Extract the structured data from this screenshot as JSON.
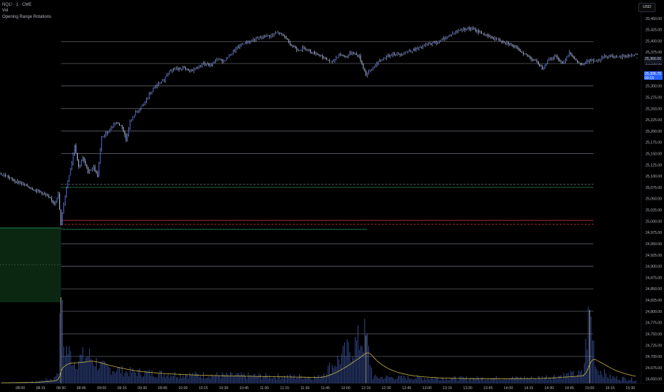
{
  "legend": {
    "symbol": "NQ1! · 1 · CME",
    "volume": "Vol",
    "indicator": "Opening Range Rotations"
  },
  "currency": "USD",
  "price_tags": {
    "last": "25,366.00",
    "current": "25,306.75",
    "current_sub": "00:15"
  },
  "colors": {
    "background": "#000000",
    "candle": "#c9d6ff",
    "candle_body": "#4a6cf7",
    "volume": "#3f5ab0",
    "volume_ma": "#c9b43f",
    "grid_lines": "#6b6f78",
    "green_level": "#27a86b",
    "red_level": "#e03b3b",
    "range_box": "#0d2e14"
  },
  "chart_data": {
    "type": "candlestick",
    "y_axis": {
      "range": [
        24640,
        25475
      ],
      "ticks": [
        24650,
        24675,
        24700,
        24725,
        24750,
        24775,
        24800,
        24825,
        24850,
        24875,
        24900,
        24925,
        24950,
        24975,
        25000,
        25025,
        25050,
        25075,
        25100,
        25125,
        25150,
        25175,
        25200,
        25225,
        25250,
        25275,
        25300,
        25325,
        25350,
        25375,
        25400,
        25425,
        25450
      ],
      "tick_labels": [
        "24,650.00",
        "24,675.00",
        "24,700.00",
        "24,725.00",
        "24,750.00",
        "24,775.00",
        "24,800.00",
        "24,825.00",
        "24,850.00",
        "24,875.00",
        "24,900.00",
        "24,925.00",
        "24,950.00",
        "24,975.00",
        "25,000.00",
        "25,025.00",
        "25,050.00",
        "25,075.00",
        "25,100.00",
        "25,125.00",
        "25,150.00",
        "25,175.00",
        "25,200.00",
        "25,225.00",
        "25,250.00",
        "25,275.00",
        "25,300.00",
        "25,325.00",
        "25,350.00",
        "25,375.00",
        "25,400.00",
        "25,425.00",
        "25,450.00"
      ]
    },
    "x_axis": {
      "tick_labels": [
        "08:00",
        "08:15",
        "08:30",
        "08:45",
        "09:00",
        "09:15",
        "09:30",
        "09:45",
        "10:00",
        "10:15",
        "10:30",
        "10:45",
        "11:00",
        "11:15",
        "11:30",
        "11:45",
        "12:00",
        "12:15",
        "12:30",
        "12:45",
        "13:00",
        "13:15",
        "13:30",
        "13:45",
        "14:00",
        "14:15",
        "14:30",
        "14:45",
        "15:00",
        "15:15",
        "15:30"
      ],
      "tick_minutes": [
        480,
        495,
        510,
        525,
        540,
        555,
        570,
        585,
        600,
        615,
        630,
        645,
        660,
        675,
        690,
        705,
        720,
        735,
        750,
        765,
        780,
        795,
        810,
        825,
        840,
        855,
        870,
        885,
        900,
        915,
        930
      ]
    },
    "price_path": [
      {
        "t": 465,
        "p": 25105
      },
      {
        "t": 470,
        "p": 25100
      },
      {
        "t": 475,
        "p": 25090
      },
      {
        "t": 480,
        "p": 25085
      },
      {
        "t": 485,
        "p": 25078
      },
      {
        "t": 490,
        "p": 25070
      },
      {
        "t": 495,
        "p": 25065
      },
      {
        "t": 500,
        "p": 25055
      },
      {
        "t": 505,
        "p": 25040
      },
      {
        "t": 508,
        "p": 25060
      },
      {
        "t": 510,
        "p": 24990
      },
      {
        "t": 512,
        "p": 25040
      },
      {
        "t": 515,
        "p": 25090
      },
      {
        "t": 518,
        "p": 25130
      },
      {
        "t": 520,
        "p": 25170
      },
      {
        "t": 523,
        "p": 25120
      },
      {
        "t": 526,
        "p": 25140
      },
      {
        "t": 530,
        "p": 25110
      },
      {
        "t": 534,
        "p": 25120
      },
      {
        "t": 537,
        "p": 25100
      },
      {
        "t": 540,
        "p": 25185
      },
      {
        "t": 545,
        "p": 25200
      },
      {
        "t": 550,
        "p": 25220
      },
      {
        "t": 555,
        "p": 25210
      },
      {
        "t": 558,
        "p": 25180
      },
      {
        "t": 561,
        "p": 25220
      },
      {
        "t": 565,
        "p": 25240
      },
      {
        "t": 570,
        "p": 25255
      },
      {
        "t": 575,
        "p": 25280
      },
      {
        "t": 580,
        "p": 25300
      },
      {
        "t": 585,
        "p": 25310
      },
      {
        "t": 590,
        "p": 25335
      },
      {
        "t": 595,
        "p": 25338
      },
      {
        "t": 600,
        "p": 25340
      },
      {
        "t": 605,
        "p": 25332
      },
      {
        "t": 610,
        "p": 25340
      },
      {
        "t": 615,
        "p": 25350
      },
      {
        "t": 620,
        "p": 25345
      },
      {
        "t": 625,
        "p": 25360
      },
      {
        "t": 630,
        "p": 25355
      },
      {
        "t": 635,
        "p": 25370
      },
      {
        "t": 640,
        "p": 25385
      },
      {
        "t": 645,
        "p": 25395
      },
      {
        "t": 650,
        "p": 25400
      },
      {
        "t": 655,
        "p": 25405
      },
      {
        "t": 660,
        "p": 25410
      },
      {
        "t": 665,
        "p": 25412
      },
      {
        "t": 670,
        "p": 25418
      },
      {
        "t": 675,
        "p": 25410
      },
      {
        "t": 680,
        "p": 25390
      },
      {
        "t": 685,
        "p": 25380
      },
      {
        "t": 690,
        "p": 25385
      },
      {
        "t": 695,
        "p": 25375
      },
      {
        "t": 700,
        "p": 25370
      },
      {
        "t": 705,
        "p": 25360
      },
      {
        "t": 710,
        "p": 25352
      },
      {
        "t": 715,
        "p": 25370
      },
      {
        "t": 720,
        "p": 25365
      },
      {
        "t": 725,
        "p": 25375
      },
      {
        "t": 730,
        "p": 25365
      },
      {
        "t": 735,
        "p": 25325
      },
      {
        "t": 740,
        "p": 25340
      },
      {
        "t": 745,
        "p": 25355
      },
      {
        "t": 750,
        "p": 25365
      },
      {
        "t": 755,
        "p": 25372
      },
      {
        "t": 760,
        "p": 25370
      },
      {
        "t": 765,
        "p": 25376
      },
      {
        "t": 770,
        "p": 25380
      },
      {
        "t": 775,
        "p": 25385
      },
      {
        "t": 780,
        "p": 25392
      },
      {
        "t": 785,
        "p": 25395
      },
      {
        "t": 790,
        "p": 25400
      },
      {
        "t": 795,
        "p": 25410
      },
      {
        "t": 800,
        "p": 25418
      },
      {
        "t": 805,
        "p": 25425
      },
      {
        "t": 810,
        "p": 25428
      },
      {
        "t": 815,
        "p": 25424
      },
      {
        "t": 820,
        "p": 25418
      },
      {
        "t": 825,
        "p": 25410
      },
      {
        "t": 830,
        "p": 25405
      },
      {
        "t": 835,
        "p": 25400
      },
      {
        "t": 840,
        "p": 25395
      },
      {
        "t": 845,
        "p": 25385
      },
      {
        "t": 850,
        "p": 25375
      },
      {
        "t": 855,
        "p": 25365
      },
      {
        "t": 860,
        "p": 25355
      },
      {
        "t": 865,
        "p": 25340
      },
      {
        "t": 870,
        "p": 25360
      },
      {
        "t": 875,
        "p": 25365
      },
      {
        "t": 880,
        "p": 25350
      },
      {
        "t": 885,
        "p": 25375
      },
      {
        "t": 890,
        "p": 25355
      },
      {
        "t": 895,
        "p": 25345
      },
      {
        "t": 900,
        "p": 25360
      },
      {
        "t": 905,
        "p": 25355
      },
      {
        "t": 910,
        "p": 25365
      },
      {
        "t": 915,
        "p": 25368
      },
      {
        "t": 920,
        "p": 25362
      },
      {
        "t": 925,
        "p": 25366
      },
      {
        "t": 930,
        "p": 25368
      },
      {
        "t": 935,
        "p": 25370
      }
    ],
    "volume_range": [
      0,
      3600
    ],
    "volume_profile": [
      {
        "t": 465,
        "v": 30
      },
      {
        "t": 490,
        "v": 60
      },
      {
        "t": 505,
        "v": 200
      },
      {
        "t": 508,
        "v": 600
      },
      {
        "t": 510,
        "v": 3400
      },
      {
        "t": 512,
        "v": 1500
      },
      {
        "t": 520,
        "v": 900
      },
      {
        "t": 530,
        "v": 1100
      },
      {
        "t": 540,
        "v": 650
      },
      {
        "t": 560,
        "v": 450
      },
      {
        "t": 600,
        "v": 350
      },
      {
        "t": 650,
        "v": 300
      },
      {
        "t": 700,
        "v": 250
      },
      {
        "t": 735,
        "v": 1900
      },
      {
        "t": 740,
        "v": 250
      },
      {
        "t": 800,
        "v": 200
      },
      {
        "t": 860,
        "v": 220
      },
      {
        "t": 895,
        "v": 400
      },
      {
        "t": 900,
        "v": 2900
      },
      {
        "t": 905,
        "v": 600
      },
      {
        "t": 915,
        "v": 250
      },
      {
        "t": 935,
        "v": 150
      }
    ],
    "horizontal_levels": [
      {
        "price": 25398,
        "style": "solid",
        "color": "grey"
      },
      {
        "price": 25350,
        "style": "solid",
        "color": "grey"
      },
      {
        "price": 25300,
        "style": "solid",
        "color": "grey"
      },
      {
        "price": 25250,
        "style": "solid",
        "color": "grey"
      },
      {
        "price": 25200,
        "style": "solid",
        "color": "grey"
      },
      {
        "price": 25150,
        "style": "solid",
        "color": "grey"
      },
      {
        "price": 25082,
        "style": "dashed",
        "color": "grey"
      },
      {
        "price": 25075,
        "style": "solid",
        "color": "green"
      },
      {
        "price": 25002,
        "style": "solid",
        "color": "red"
      },
      {
        "price": 24993,
        "style": "dashed",
        "color": "red"
      },
      {
        "price": 24950,
        "style": "solid",
        "color": "grey"
      },
      {
        "price": 24900,
        "style": "solid",
        "color": "grey"
      },
      {
        "price": 24850,
        "style": "solid",
        "color": "grey"
      },
      {
        "price": 24800,
        "style": "solid",
        "color": "grey"
      },
      {
        "price": 24750,
        "style": "solid",
        "color": "grey"
      },
      {
        "price": 24700,
        "style": "solid",
        "color": "grey"
      }
    ],
    "opening_range_box": {
      "t_start": 465,
      "t_end": 510,
      "price_high": 24985,
      "price_low": 24820,
      "mid": 24903
    }
  }
}
